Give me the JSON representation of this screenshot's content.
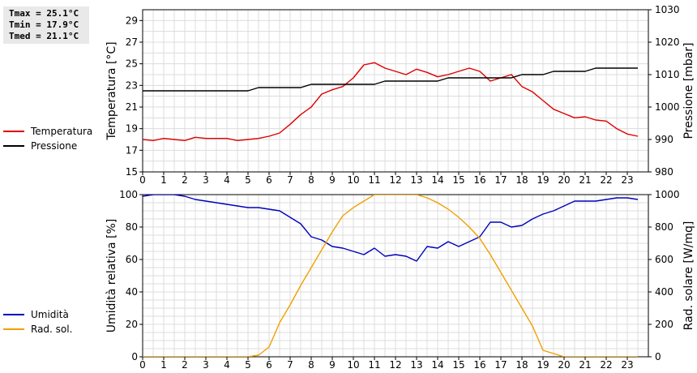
{
  "stats": {
    "tmax": "Tmax = 25.1°C",
    "tmin": "Tmin = 17.9°C",
    "tmed": "Tmed = 21.1°C"
  },
  "chart_data": [
    {
      "type": "line",
      "xlabel": "",
      "xlim": [
        0,
        24
      ],
      "x_ticks": [
        "0",
        "1",
        "2",
        "3",
        "4",
        "5",
        "6",
        "7",
        "8",
        "9",
        "10",
        "11",
        "12",
        "13",
        "14",
        "15",
        "16",
        "17",
        "18",
        "19",
        "20",
        "21",
        "22",
        "23"
      ],
      "left_axis": {
        "label": "Temperatura [°C]",
        "ylim": [
          15,
          30
        ],
        "ticks": [
          "15",
          "17",
          "19",
          "21",
          "23",
          "25",
          "27",
          "29"
        ]
      },
      "right_axis": {
        "label": "Pressione [mbar]",
        "ylim": [
          980,
          1030
        ],
        "ticks": [
          "980",
          "990",
          "1000",
          "1010",
          "1020",
          "1030"
        ]
      },
      "legend": {
        "position": "left"
      },
      "grid": true,
      "series": [
        {
          "name": "Temperatura",
          "axis": "left",
          "color": "#dd0000",
          "x": [
            0,
            0.5,
            1,
            1.5,
            2,
            2.5,
            3,
            3.5,
            4,
            4.5,
            5,
            5.5,
            6,
            6.5,
            7,
            7.5,
            8,
            8.5,
            9,
            9.5,
            10,
            10.5,
            11,
            11.5,
            12,
            12.5,
            13,
            13.5,
            14,
            14.5,
            15,
            15.5,
            16,
            16.5,
            17,
            17.5,
            18,
            18.5,
            19,
            19.5,
            20,
            20.5,
            21,
            21.5,
            22,
            22.5,
            23,
            23.5
          ],
          "y": [
            18.0,
            17.9,
            18.1,
            18.0,
            17.9,
            18.2,
            18.1,
            18.1,
            18.1,
            17.9,
            18.0,
            18.1,
            18.3,
            18.6,
            19.4,
            20.3,
            21.0,
            22.2,
            22.6,
            22.9,
            23.7,
            24.9,
            25.1,
            24.6,
            24.3,
            24.0,
            24.5,
            24.2,
            23.8,
            24.0,
            24.3,
            24.6,
            24.3,
            23.4,
            23.7,
            24.0,
            22.9,
            22.4,
            21.6,
            20.8,
            20.4,
            20.0,
            20.1,
            19.8,
            19.7,
            19.0,
            18.5,
            18.3
          ]
        },
        {
          "name": "Pressione",
          "axis": "right",
          "color": "#000000",
          "x": [
            0,
            0.5,
            1,
            1.5,
            2,
            2.5,
            3,
            3.5,
            4,
            4.5,
            5,
            5.5,
            6,
            6.5,
            7,
            7.5,
            8,
            8.5,
            9,
            9.5,
            10,
            10.5,
            11,
            11.5,
            12,
            12.5,
            13,
            13.5,
            14,
            14.5,
            15,
            15.5,
            16,
            16.5,
            17,
            17.5,
            18,
            18.5,
            19,
            19.5,
            20,
            20.5,
            21,
            21.5,
            22,
            22.5,
            23,
            23.5
          ],
          "y": [
            1005,
            1005,
            1005,
            1005,
            1005,
            1005,
            1005,
            1005,
            1005,
            1005,
            1005,
            1006,
            1006,
            1006,
            1006,
            1006,
            1007,
            1007,
            1007,
            1007,
            1007,
            1007,
            1007,
            1008,
            1008,
            1008,
            1008,
            1008,
            1008,
            1009,
            1009,
            1009,
            1009,
            1009,
            1009,
            1009,
            1010,
            1010,
            1010,
            1011,
            1011,
            1011,
            1011,
            1012,
            1012,
            1012,
            1012,
            1012
          ]
        }
      ]
    },
    {
      "type": "line",
      "xlabel": "",
      "xlim": [
        0,
        24
      ],
      "x_ticks": [
        "0",
        "1",
        "2",
        "3",
        "4",
        "5",
        "6",
        "7",
        "8",
        "9",
        "10",
        "11",
        "12",
        "13",
        "14",
        "15",
        "16",
        "17",
        "18",
        "19",
        "20",
        "21",
        "22",
        "23"
      ],
      "left_axis": {
        "label": "Umidità relativa [%]",
        "ylim": [
          0,
          100
        ],
        "ticks": [
          "0",
          "20",
          "40",
          "60",
          "80",
          "100"
        ]
      },
      "right_axis": {
        "label": "Rad. solare [W/mq]",
        "ylim": [
          0,
          1000
        ],
        "ticks": [
          "0",
          "200",
          "400",
          "600",
          "800",
          "1000"
        ]
      },
      "legend": {
        "position": "left"
      },
      "grid": true,
      "series": [
        {
          "name": "Umidità",
          "axis": "left",
          "color": "#0000bb",
          "x": [
            0,
            0.5,
            1,
            1.5,
            2,
            2.5,
            3,
            3.5,
            4,
            4.5,
            5,
            5.5,
            6,
            6.5,
            7,
            7.5,
            8,
            8.5,
            9,
            9.5,
            10,
            10.5,
            11,
            11.5,
            12,
            12.5,
            13,
            13.5,
            14,
            14.5,
            15,
            15.5,
            16,
            16.5,
            17,
            17.5,
            18,
            18.5,
            19,
            19.5,
            20,
            20.5,
            21,
            21.5,
            22,
            22.5,
            23,
            23.5
          ],
          "y": [
            99,
            100,
            100,
            100,
            99,
            97,
            96,
            95,
            94,
            93,
            92,
            92,
            91,
            90,
            86,
            82,
            74,
            72,
            68,
            67,
            65,
            63,
            67,
            62,
            63,
            62,
            59,
            68,
            67,
            71,
            68,
            71,
            74,
            83,
            83,
            80,
            81,
            85,
            88,
            90,
            93,
            96,
            96,
            96,
            97,
            98,
            98,
            97
          ]
        },
        {
          "name": "Rad. sol.",
          "axis": "right",
          "color": "#f0a000",
          "x": [
            0,
            0.5,
            1,
            1.5,
            2,
            2.5,
            3,
            3.5,
            4,
            4.5,
            5,
            5.5,
            6,
            6.5,
            7,
            7.5,
            8,
            8.5,
            9,
            9.5,
            10,
            10.5,
            11,
            11.5,
            12,
            12.5,
            13,
            13.5,
            14,
            14.5,
            15,
            15.5,
            16,
            16.5,
            17,
            17.5,
            18,
            18.5,
            19,
            19.5,
            20,
            20.5,
            21,
            21.5,
            22,
            22.5,
            23,
            23.5
          ],
          "y": [
            0,
            0,
            0,
            0,
            0,
            0,
            0,
            0,
            0,
            0,
            0,
            10,
            60,
            210,
            320,
            440,
            550,
            660,
            770,
            870,
            920,
            960,
            1000,
            1000,
            1000,
            1000,
            1000,
            980,
            950,
            910,
            860,
            800,
            730,
            630,
            520,
            410,
            300,
            190,
            40,
            20,
            0,
            0,
            0,
            0,
            0,
            0,
            0,
            0
          ]
        }
      ]
    }
  ]
}
